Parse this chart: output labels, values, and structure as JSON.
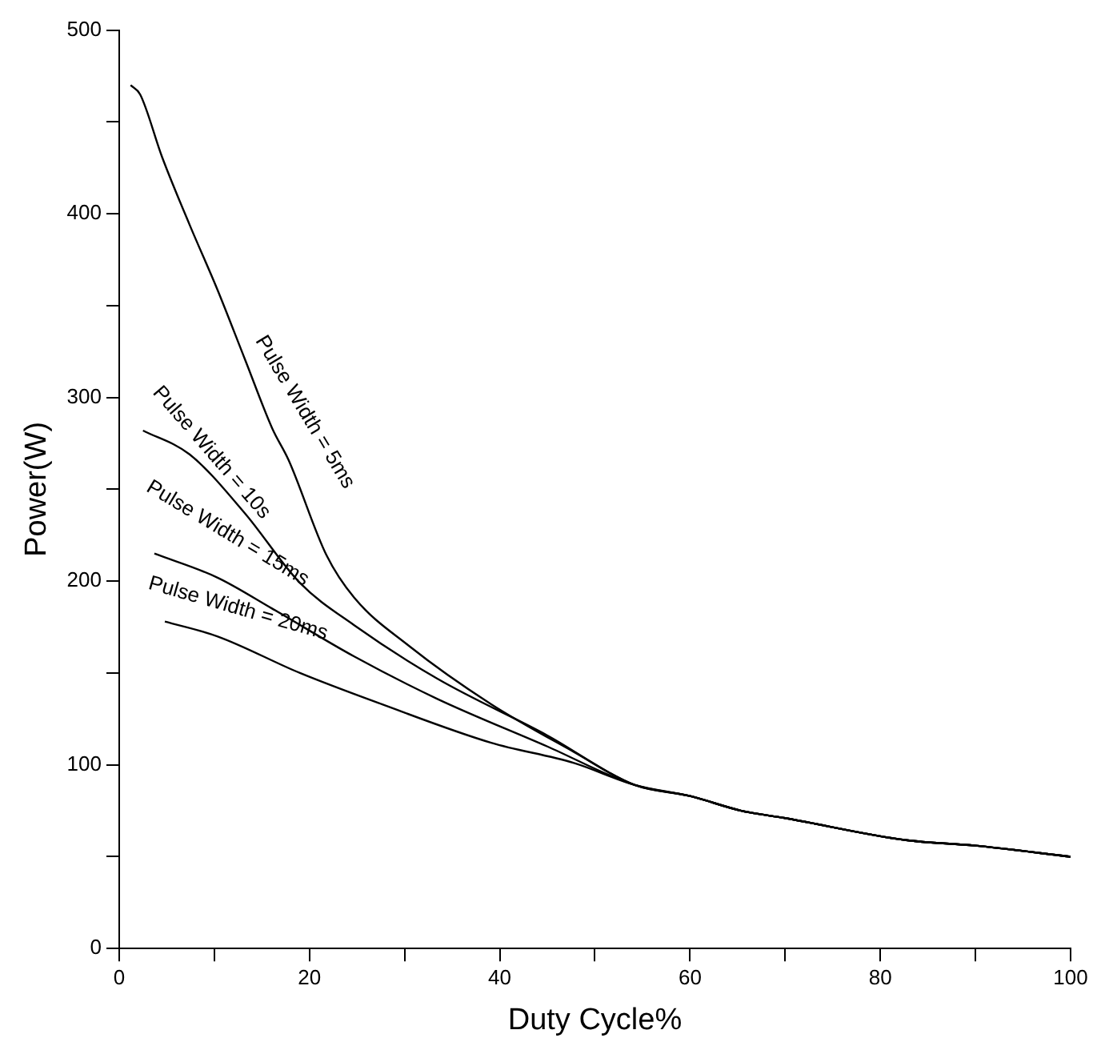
{
  "chart_data": {
    "type": "line",
    "xlabel": "Duty Cycle%",
    "ylabel": "Power(W)",
    "xlim": [
      0,
      100
    ],
    "ylim": [
      0,
      500
    ],
    "xticks": [
      0,
      {
        "value": 10,
        "label": null
      },
      20,
      {
        "value": 30,
        "label": null
      },
      40,
      {
        "value": 50,
        "label": null
      },
      60,
      {
        "value": 70,
        "label": null
      },
      80,
      {
        "value": 90,
        "label": null
      },
      100
    ],
    "yticks": [
      0,
      {
        "value": 50,
        "label": null
      },
      100,
      {
        "value": 150,
        "label": null
      },
      200,
      {
        "value": 250,
        "label": null
      },
      300,
      {
        "value": 350,
        "label": null
      },
      400,
      {
        "value": 450,
        "label": null
      },
      500
    ],
    "grid": false,
    "legend": false,
    "marker": "none",
    "line_style": "solid",
    "series": [
      {
        "name": "Pulse Width = 5ms",
        "color": "#000000",
        "x": [
          1.2,
          2.2,
          4.5,
          7.4,
          10.3,
          13.2,
          16.1,
          17.8,
          21.8,
          24.7,
          30.4,
          39.1,
          47.8,
          54.2,
          60,
          65.4,
          70,
          82.7,
          90,
          100
        ],
        "values": [
          470,
          465,
          431,
          394,
          359,
          321,
          283,
          266,
          214,
          191,
          165,
          133,
          107,
          89,
          83,
          75,
          71,
          59,
          56,
          50
        ]
      },
      {
        "name": "Pulse Width = 10s",
        "color": "#000000",
        "x": [
          2.5,
          7.4,
          13.2,
          19,
          24.7,
          33.4,
          45,
          54.2,
          60,
          65.4,
          70,
          82.7,
          90,
          100
        ],
        "values": [
          282,
          269,
          237,
          199,
          176,
          147,
          116,
          89,
          83,
          75,
          71,
          59,
          56,
          50
        ]
      },
      {
        "name": "Pulse Width = 15ms",
        "color": "#000000",
        "x": [
          3.7,
          10.3,
          16.1,
          24.7,
          33.4,
          45,
          54.2,
          60,
          65.4,
          70,
          82.7,
          90,
          100
        ],
        "values": [
          215,
          202,
          185,
          159,
          136,
          110,
          89,
          83,
          75,
          71,
          59,
          56,
          50
        ]
      },
      {
        "name": "Pulse Width = 20ms",
        "color": "#000000",
        "x": [
          4.8,
          10.3,
          19,
          27.6,
          39.1,
          47.8,
          54.2,
          60,
          65.4,
          70,
          82.7,
          90,
          100
        ],
        "values": [
          178,
          170,
          150,
          133,
          112,
          101,
          89,
          83,
          75,
          71,
          59,
          56,
          50
        ]
      }
    ]
  }
}
